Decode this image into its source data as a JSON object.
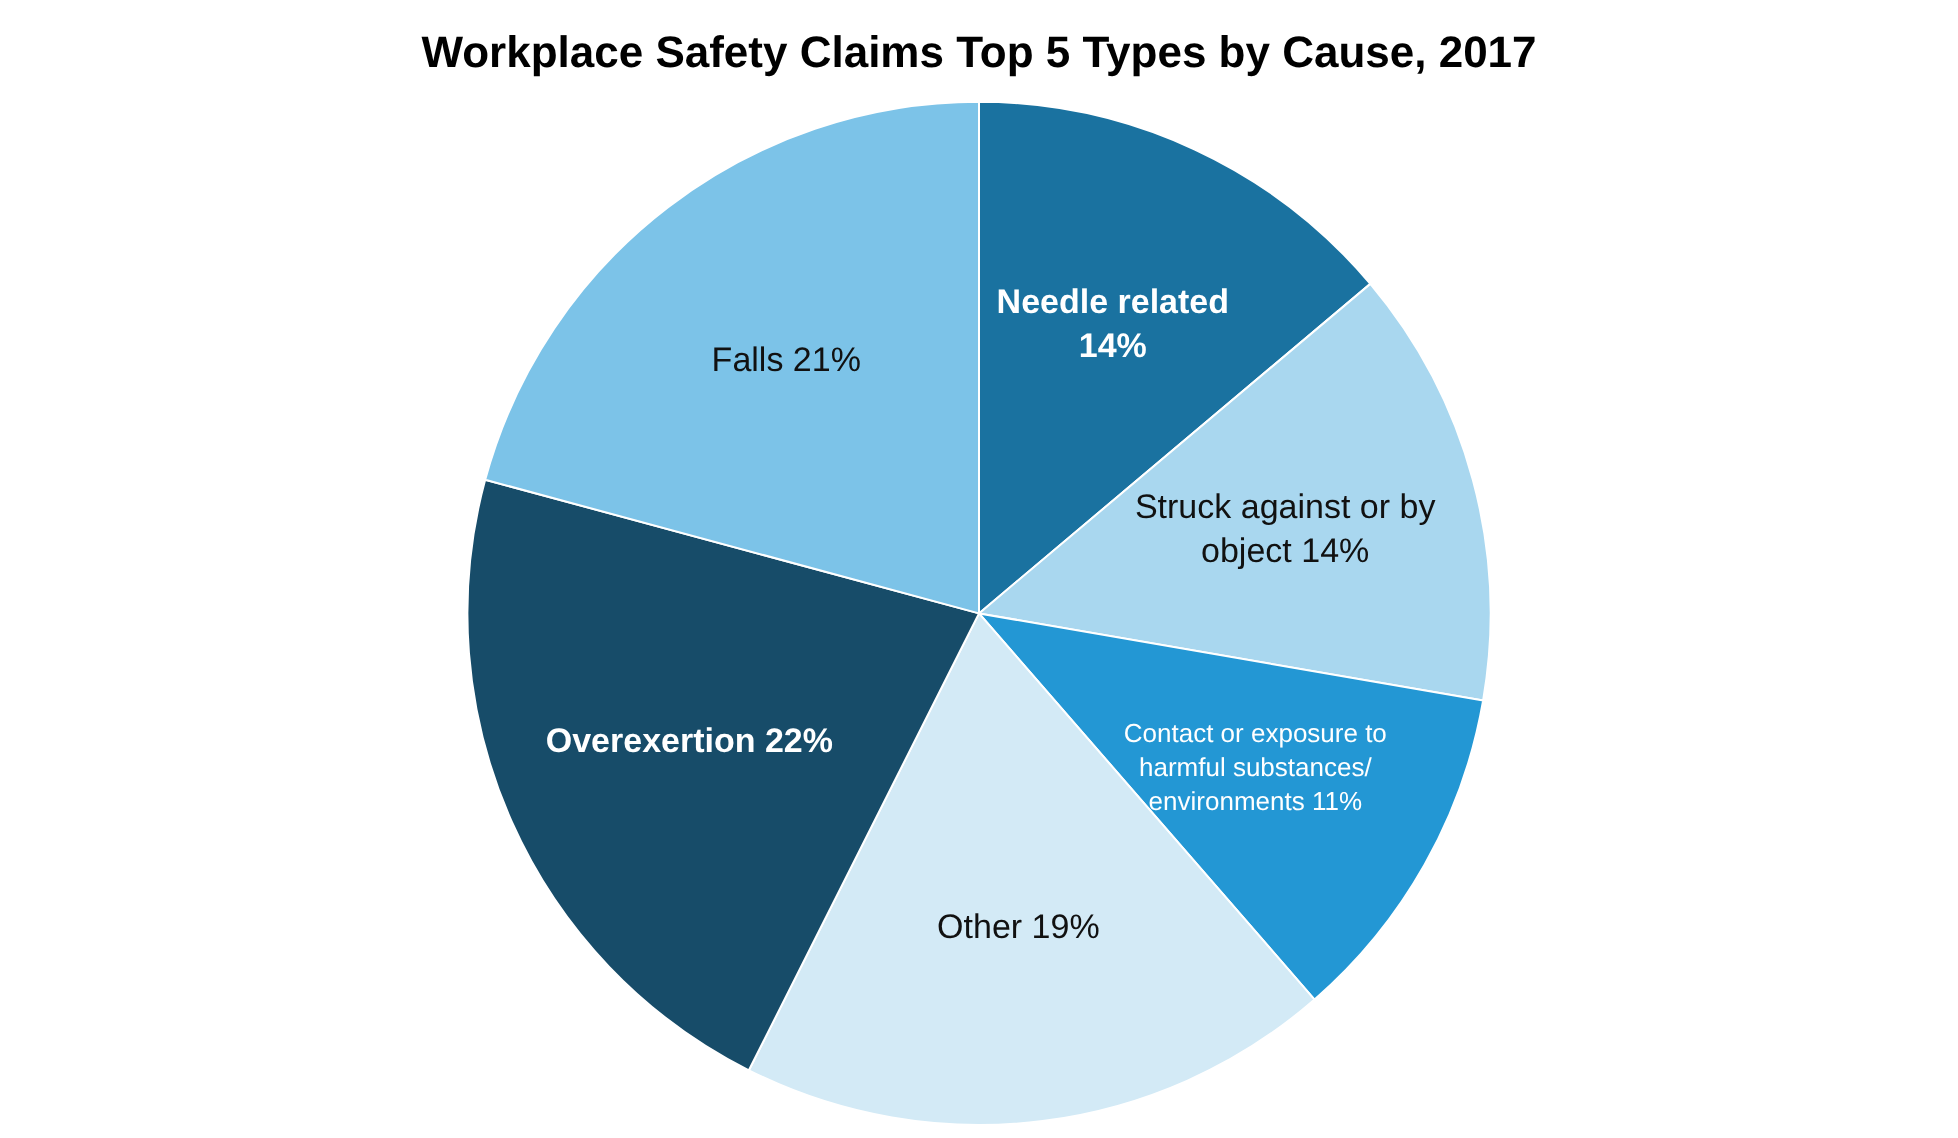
{
  "chart_data": {
    "type": "pie",
    "title": "Workplace Safety Claims Top 5 Types by Cause, 2017",
    "categories": [
      "Needle related",
      "Struck against or by object",
      "Contact or exposure to harmful substances/ environments",
      "Other",
      "Overexertion",
      "Falls"
    ],
    "values": [
      14,
      14,
      11,
      19,
      22,
      21
    ],
    "value_labels": [
      "14%",
      "14%",
      "11%",
      "19%",
      "22%",
      "21%"
    ],
    "colors": [
      "#1a72a0",
      "#a9d7ef",
      "#2397d4",
      "#d3eaf6",
      "#174c69",
      "#7cc3e8"
    ],
    "legend": false
  }
}
